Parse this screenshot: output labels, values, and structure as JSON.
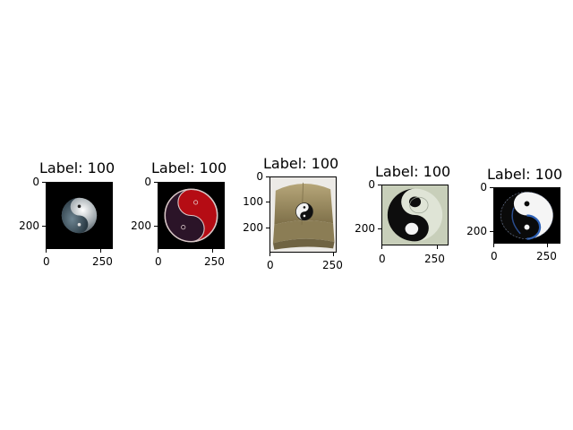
{
  "panels": [
    {
      "title": "Label: 100",
      "yticks": [
        "0",
        "200"
      ],
      "xticks": [
        "0",
        "250"
      ],
      "image": "yin-yang-metallic-on-black"
    },
    {
      "title": "Label: 100",
      "yticks": [
        "0",
        "200"
      ],
      "xticks": [
        "0",
        "250"
      ],
      "image": "yin-yang-red-purple"
    },
    {
      "title": "Label: 100",
      "yticks": [
        "0",
        "100",
        "200"
      ],
      "xticks": [
        "0",
        "250"
      ],
      "image": "yin-yang-cap"
    },
    {
      "title": "Label: 100",
      "yticks": [
        "0",
        "200"
      ],
      "xticks": [
        "0",
        "250"
      ],
      "image": "yin-yang-black-on-pale-green"
    },
    {
      "title": "Label: 100",
      "yticks": [
        "0",
        "200"
      ],
      "xticks": [
        "0",
        "250"
      ],
      "image": "yin-yang-blue-on-black"
    }
  ]
}
